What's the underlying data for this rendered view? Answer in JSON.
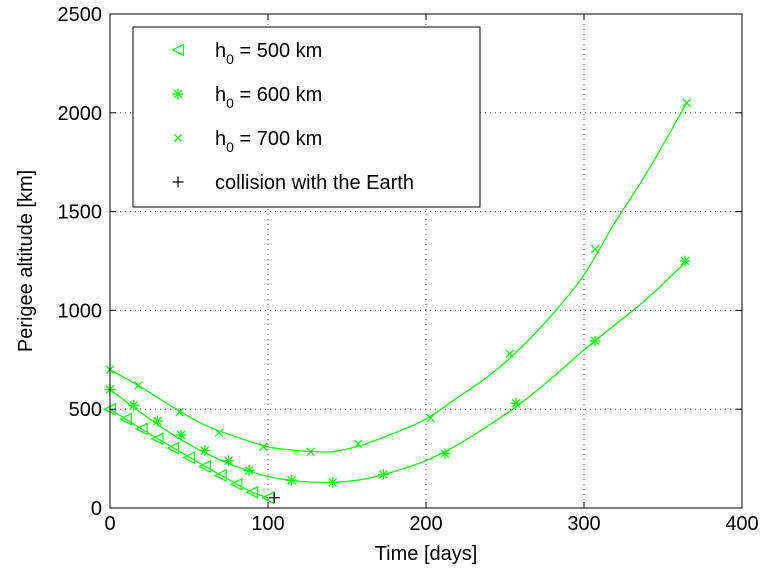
{
  "chart_data": {
    "type": "line",
    "xlabel": "Time [days]",
    "ylabel": "Perigee altitude [km]",
    "xlim": [
      0,
      400
    ],
    "ylim": [
      0,
      2500
    ],
    "xticks": [
      0,
      100,
      200,
      300,
      400
    ],
    "yticks": [
      0,
      500,
      1000,
      1500,
      2000,
      2500
    ],
    "grid": true,
    "legend_position": "top-left",
    "series": [
      {
        "name_parts": [
          "h",
          "0",
          " = 500 km"
        ],
        "color": "#00ff00",
        "marker": "triangle-left",
        "line": [
          [
            0,
            500
          ],
          [
            10,
            450
          ],
          [
            20,
            400
          ],
          [
            30,
            352
          ],
          [
            40,
            305
          ],
          [
            50,
            258
          ],
          [
            60,
            212
          ],
          [
            70,
            167
          ],
          [
            80,
            122
          ],
          [
            90,
            80
          ],
          [
            100,
            52
          ]
        ],
        "markers": [
          [
            0,
            500
          ],
          [
            10,
            450
          ],
          [
            20,
            400
          ],
          [
            30,
            350
          ],
          [
            40,
            303
          ],
          [
            50,
            255
          ],
          [
            60,
            210
          ],
          [
            70,
            165
          ],
          [
            80,
            120
          ],
          [
            90,
            80
          ],
          [
            100,
            52
          ]
        ]
      },
      {
        "name_parts": [
          "h",
          "0",
          " = 600 km"
        ],
        "color": "#00ff00",
        "marker": "star",
        "line": [
          [
            0,
            600
          ],
          [
            20,
            480
          ],
          [
            40,
            370
          ],
          [
            60,
            280
          ],
          [
            80,
            210
          ],
          [
            100,
            160
          ],
          [
            120,
            135
          ],
          [
            140,
            130
          ],
          [
            160,
            145
          ],
          [
            180,
            185
          ],
          [
            200,
            240
          ],
          [
            220,
            320
          ],
          [
            240,
            420
          ],
          [
            260,
            530
          ],
          [
            280,
            660
          ],
          [
            300,
            800
          ],
          [
            320,
            930
          ],
          [
            340,
            1060
          ],
          [
            365,
            1250
          ]
        ],
        "markers": [
          [
            0,
            600
          ],
          [
            15,
            520
          ],
          [
            30,
            440
          ],
          [
            45,
            370
          ],
          [
            60,
            290
          ],
          [
            75,
            240
          ],
          [
            88,
            190
          ],
          [
            115,
            140
          ],
          [
            141,
            130
          ],
          [
            173,
            170
          ],
          [
            212,
            275
          ],
          [
            257,
            530
          ],
          [
            307,
            845
          ],
          [
            364,
            1250
          ]
        ]
      },
      {
        "name_parts": [
          "h",
          "0",
          " = 700 km"
        ],
        "color": "#00ff00",
        "marker": "x",
        "line": [
          [
            0,
            700
          ],
          [
            20,
            610
          ],
          [
            40,
            510
          ],
          [
            60,
            420
          ],
          [
            80,
            360
          ],
          [
            100,
            310
          ],
          [
            120,
            290
          ],
          [
            140,
            285
          ],
          [
            160,
            320
          ],
          [
            180,
            380
          ],
          [
            200,
            450
          ],
          [
            220,
            560
          ],
          [
            240,
            670
          ],
          [
            260,
            810
          ],
          [
            280,
            980
          ],
          [
            300,
            1180
          ],
          [
            320,
            1450
          ],
          [
            340,
            1700
          ],
          [
            365,
            2050
          ]
        ],
        "markers": [
          [
            0,
            700
          ],
          [
            18,
            620
          ],
          [
            44,
            485
          ],
          [
            69,
            380
          ],
          [
            97,
            310
          ],
          [
            127,
            285
          ],
          [
            157,
            325
          ],
          [
            203,
            455
          ],
          [
            253,
            780
          ],
          [
            307,
            1310
          ],
          [
            365,
            2050
          ]
        ]
      },
      {
        "name": "collision with the Earth",
        "color": "#000000",
        "marker": "plus",
        "line": [],
        "markers": [
          [
            104,
            52
          ]
        ]
      }
    ]
  }
}
